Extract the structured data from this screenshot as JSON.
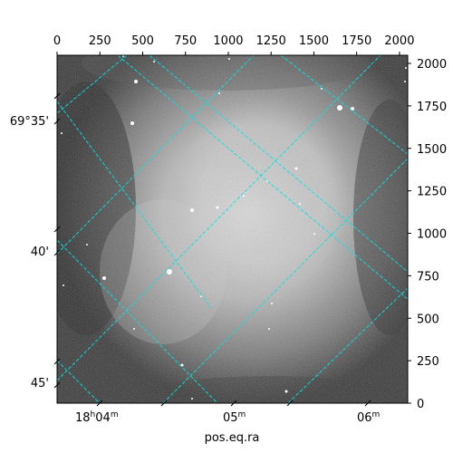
{
  "image": {
    "description_type": "astronomical image, grayscale, with WCS coordinate grid overlay",
    "colormap": "gray",
    "grid_color": "#00e5e5",
    "grid_style": "dashed"
  },
  "axes": {
    "top_pixel_x": {
      "ticks": [
        0,
        250,
        500,
        750,
        1000,
        1250,
        1500,
        1750,
        2000
      ],
      "labels": [
        "0",
        "250",
        "500",
        "750",
        "1000",
        "1250",
        "1500",
        "1750",
        "2000"
      ],
      "range": [
        0,
        2048
      ]
    },
    "right_pixel_y": {
      "ticks": [
        0,
        250,
        500,
        750,
        1000,
        1250,
        1500,
        1750,
        2000
      ],
      "labels": [
        "0",
        "250",
        "500",
        "750",
        "1000",
        "1250",
        "1500",
        "1750",
        "2000"
      ],
      "range": [
        0,
        2048
      ]
    },
    "left_dec": {
      "labels": [
        "69°35'",
        "40'",
        "45'"
      ]
    },
    "bottom_ra": {
      "labels": [
        {
          "main": "18",
          "sup1": "h",
          "mid": "04",
          "sup2": "m"
        },
        {
          "main": "05",
          "sup1": "m",
          "mid": "",
          "sup2": ""
        },
        {
          "main": "06",
          "sup1": "m",
          "mid": "",
          "sup2": ""
        }
      ],
      "xlabel": "pos.eq.ra"
    }
  }
}
